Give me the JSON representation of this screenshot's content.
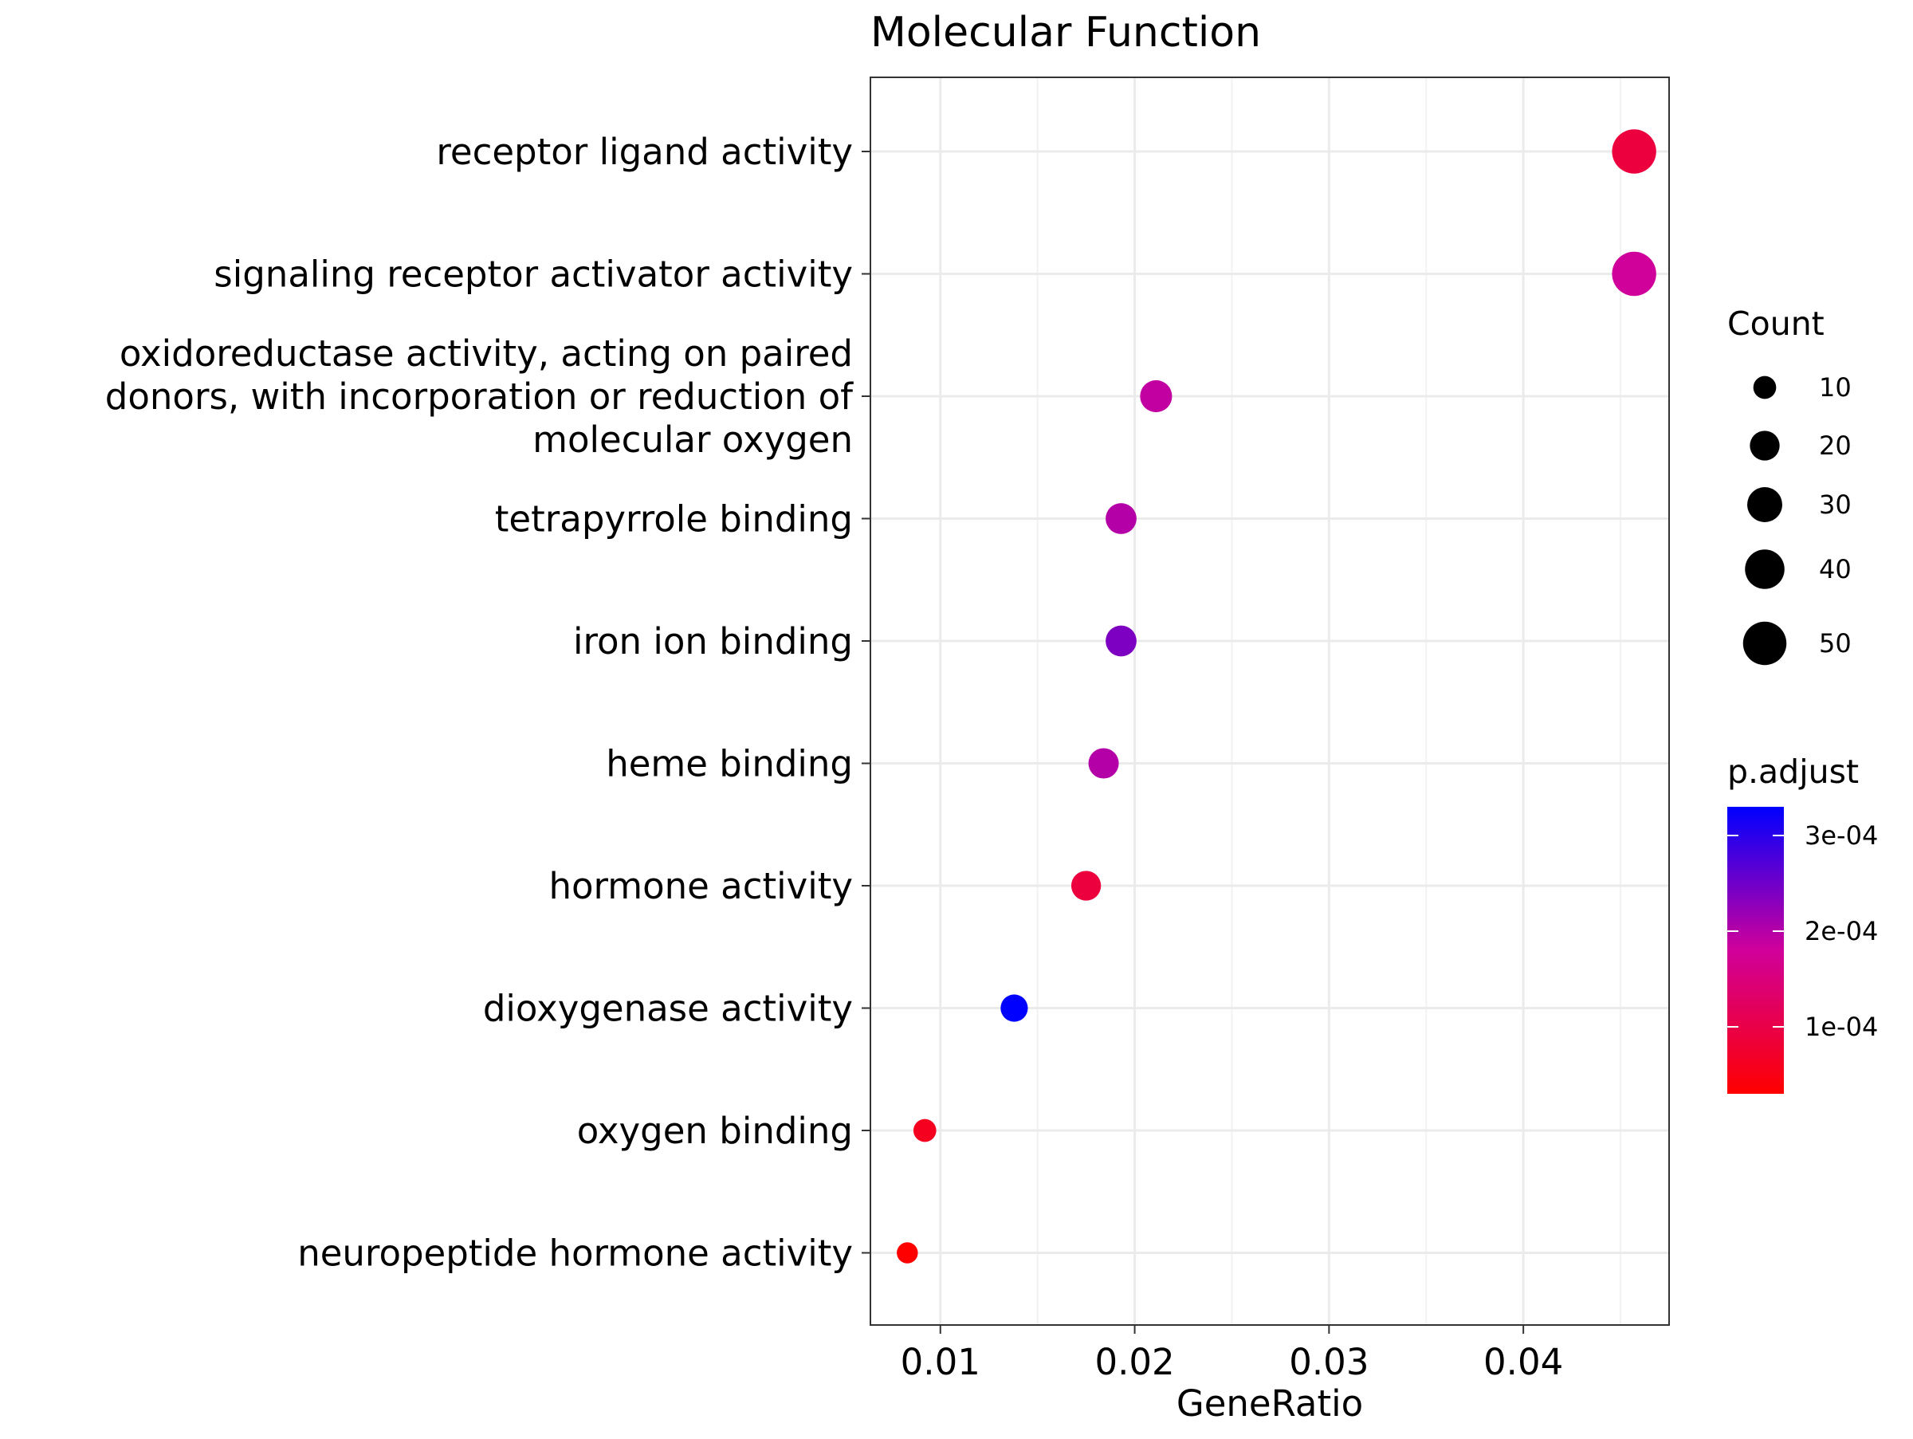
{
  "chart_data": {
    "type": "scatter",
    "title": "Molecular Function",
    "xlabel": "GeneRatio",
    "ylabel": "",
    "xlim": [
      0.0064,
      0.0475
    ],
    "xticks": [
      0.01,
      0.02,
      0.03,
      0.04
    ],
    "xtick_labels": [
      "0.01",
      "0.02",
      "0.03",
      "0.04"
    ],
    "grid": true,
    "categories": [
      "receptor ligand activity",
      "signaling receptor activator activity",
      "oxidoreductase activity, acting on paired donors, with incorporation or reduction of molecular oxygen",
      "tetrapyrrole binding",
      "iron ion binding",
      "heme binding",
      "hormone activity",
      "dioxygenase activity",
      "oxygen binding",
      "neuropeptide hormone activity"
    ],
    "category_label_lines": [
      [
        "receptor ligand activity"
      ],
      [
        "signaling receptor activator activity"
      ],
      [
        "oxidoreductase activity, acting on paired",
        "donors, with incorporation or reduction of",
        "molecular oxygen"
      ],
      [
        "tetrapyrrole binding"
      ],
      [
        "iron ion binding"
      ],
      [
        "heme binding"
      ],
      [
        "hormone activity"
      ],
      [
        "dioxygenase activity"
      ],
      [
        "oxygen binding"
      ],
      [
        "neuropeptide hormone activity"
      ]
    ],
    "points": [
      {
        "term": "receptor ligand activity",
        "gene_ratio": 0.0457,
        "count": 52,
        "p_adjust": 9e-05
      },
      {
        "term": "signaling receptor activator activity",
        "gene_ratio": 0.0457,
        "count": 52,
        "p_adjust": 0.00018
      },
      {
        "term": "oxidoreductase activity, acting on paired donors, with incorporation or reduction of molecular oxygen",
        "gene_ratio": 0.0211,
        "count": 24,
        "p_adjust": 0.00019
      },
      {
        "term": "tetrapyrrole binding",
        "gene_ratio": 0.0193,
        "count": 22,
        "p_adjust": 0.0002
      },
      {
        "term": "iron ion binding",
        "gene_ratio": 0.0193,
        "count": 22,
        "p_adjust": 0.00024
      },
      {
        "term": "heme binding",
        "gene_ratio": 0.0184,
        "count": 21,
        "p_adjust": 0.0002
      },
      {
        "term": "hormone activity",
        "gene_ratio": 0.0175,
        "count": 20,
        "p_adjust": 9e-05
      },
      {
        "term": "dioxygenase activity",
        "gene_ratio": 0.0138,
        "count": 16,
        "p_adjust": 0.00033
      },
      {
        "term": "oxygen binding",
        "gene_ratio": 0.0092,
        "count": 10,
        "p_adjust": 6e-05
      },
      {
        "term": "neuropeptide hormone activity",
        "gene_ratio": 0.0083,
        "count": 8,
        "p_adjust": 3e-05
      }
    ],
    "legend": {
      "placement": "right",
      "size": {
        "title": "Count",
        "values": [
          10,
          20,
          30,
          40,
          50
        ],
        "labels": [
          "10",
          "20",
          "30",
          "40",
          "50"
        ]
      },
      "color": {
        "title": "p.adjust",
        "range": [
          3e-05,
          0.00033
        ],
        "breaks": [
          0.0001,
          0.0002,
          0.0003
        ],
        "labels": [
          "1e-04",
          "2e-04",
          "3e-04"
        ],
        "low_color": "#ff0000",
        "high_color": "#0000ff"
      }
    }
  }
}
